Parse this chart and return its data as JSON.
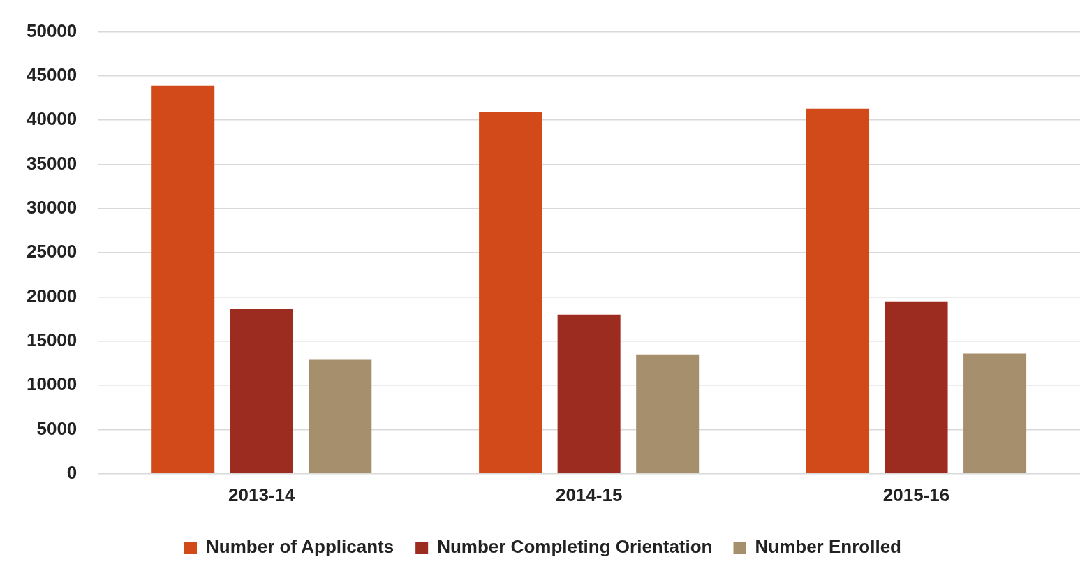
{
  "chart_data": {
    "type": "bar",
    "categories": [
      "2013-14",
      "2014-15",
      "2015-16"
    ],
    "series": [
      {
        "name": "Number of Applicants",
        "color": "#d24a1a",
        "values": [
          43900,
          40900,
          41300
        ]
      },
      {
        "name": "Number Completing Orientation",
        "color": "#9c2b20",
        "values": [
          18700,
          18000,
          19500
        ]
      },
      {
        "name": "Number Enrolled",
        "color": "#a68f6d",
        "values": [
          12900,
          13500,
          13600
        ]
      }
    ],
    "ylim": [
      0,
      50000
    ],
    "yticks": [
      0,
      5000,
      10000,
      15000,
      20000,
      25000,
      30000,
      35000,
      40000,
      45000,
      50000
    ],
    "grid": "y",
    "legend": "bottom"
  }
}
